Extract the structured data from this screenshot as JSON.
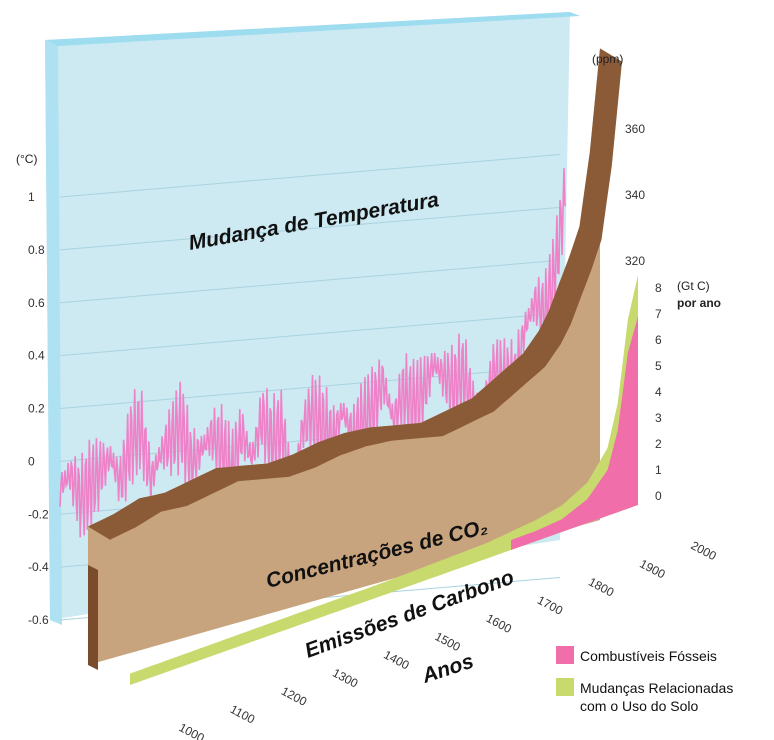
{
  "chart_data": {
    "type": "line",
    "x_axis": {
      "label": "Anos",
      "ticks": [
        "1000",
        "1100",
        "1200",
        "1300",
        "1400",
        "1500",
        "1600",
        "1700",
        "1800",
        "1900",
        "2000"
      ],
      "range": [
        1000,
        2000
      ]
    },
    "panels": [
      {
        "title": "Mudança de Temperatura",
        "unit": "(°C)",
        "yticks": [
          "1",
          "0.8",
          "0.6",
          "0.4",
          "0.2",
          "0",
          "-0.2",
          "-0.4",
          "-0.6"
        ],
        "ylim": [
          -0.6,
          1.0
        ],
        "series": [
          {
            "color": "#ee82c8",
            "x": [
              1000,
              1020,
              1040,
              1060,
              1080,
              1100,
              1120,
              1140,
              1160,
              1180,
              1200,
              1220,
              1240,
              1260,
              1280,
              1300,
              1320,
              1340,
              1360,
              1380,
              1400,
              1420,
              1440,
              1460,
              1480,
              1500,
              1520,
              1540,
              1560,
              1580,
              1600,
              1620,
              1640,
              1660,
              1680,
              1700,
              1720,
              1740,
              1760,
              1780,
              1800,
              1820,
              1840,
              1860,
              1880,
              1900,
              1920,
              1940,
              1960,
              1980,
              1990,
              2000
            ],
            "values": [
              -0.1,
              -0.05,
              -0.15,
              -0.1,
              -0.05,
              0.0,
              -0.1,
              0.05,
              0.1,
              -0.1,
              0.0,
              0.05,
              0.1,
              -0.05,
              0.0,
              0.05,
              0.0,
              -0.1,
              0.05,
              -0.05,
              0.1,
              0.0,
              0.05,
              -0.2,
              0.05,
              0.1,
              0.05,
              0.0,
              0.1,
              0.0,
              0.05,
              0.1,
              0.2,
              0.05,
              0.15,
              0.1,
              0.15,
              0.25,
              0.2,
              0.15,
              0.2,
              0.05,
              0.1,
              0.2,
              0.15,
              0.15,
              0.35,
              0.45,
              0.4,
              0.55,
              0.7,
              0.85
            ]
          }
        ]
      },
      {
        "title": "Concentrações de CO₂",
        "unit": "(ppm)",
        "yticks": [
          "360",
          "340",
          "320"
        ],
        "ylim": [
          270,
          370
        ],
        "series": [
          {
            "color": "#c8a47e",
            "x": [
              1000,
              1050,
              1100,
              1150,
              1200,
              1250,
              1300,
              1350,
              1400,
              1450,
              1500,
              1550,
              1600,
              1650,
              1700,
              1750,
              1800,
              1850,
              1880,
              1900,
              1920,
              1940,
              1960,
              1980,
              2000
            ],
            "values": [
              280,
              281,
              283,
              282,
              283,
              284,
              282,
              280,
              280,
              281,
              281,
              280,
              278,
              276,
              277,
              278,
              282,
              286,
              291,
              296,
              303,
              310,
              318,
              339,
              369
            ]
          }
        ]
      },
      {
        "title": "Emissões de Carbono",
        "unit": "(Gt C)",
        "unit2": "por ano",
        "yticks": [
          "8",
          "7",
          "6",
          "5",
          "4",
          "3",
          "2",
          "1",
          "0"
        ],
        "ylim": [
          0,
          8
        ],
        "series": [
          {
            "name": "Combustíveis Fósseis",
            "color": "#f06eaa",
            "x": [
              1750,
              1800,
              1850,
              1900,
              1920,
              1940,
              1960,
              1980,
              2000
            ],
            "values": [
              0,
              0.01,
              0.1,
              0.5,
              0.9,
              1.3,
              2.6,
              5.3,
              6.5
            ]
          },
          {
            "name": "Mudanças Relacionadas com o Uso do Solo",
            "color": "#c8da6e",
            "x": [
              1000,
              1500,
              1700,
              1750,
              1800,
              1850,
              1900,
              1920,
              1940,
              1960,
              1980,
              2000
            ],
            "values": [
              0.05,
              0.1,
              0.2,
              0.3,
              0.4,
              0.5,
              0.6,
              0.7,
              0.8,
              1.0,
              1.2,
              1.5
            ]
          }
        ]
      }
    ],
    "legend": [
      {
        "label": "Combustíveis Fósseis",
        "color": "#f06eaa"
      },
      {
        "label": "Mudanças Relacionadas",
        "label2": "com o Uso do Solo",
        "color": "#c8da6e"
      }
    ]
  }
}
